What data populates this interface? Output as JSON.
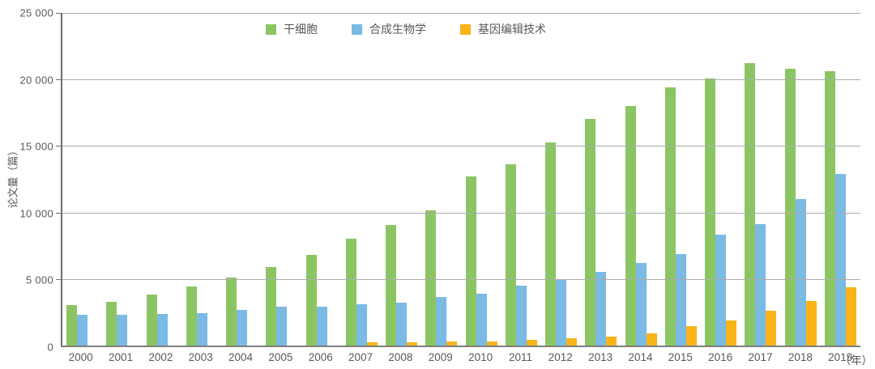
{
  "chart_data": {
    "type": "bar",
    "title": "",
    "ylabel": "论文量（篇）",
    "x_axis_unit": "（年）",
    "ylim": [
      0,
      25000
    ],
    "yticks": [
      0,
      5000,
      10000,
      15000,
      20000,
      25000
    ],
    "ytick_labels": [
      "0",
      "5 000",
      "10 000",
      "15 000",
      "20 000",
      "25 000"
    ],
    "grid": true,
    "legend_position": "top-center",
    "categories": [
      "2000",
      "2001",
      "2002",
      "2003",
      "2004",
      "2005",
      "2006",
      "2007",
      "2008",
      "2009",
      "2010",
      "2011",
      "2012",
      "2013",
      "2014",
      "2015",
      "2016",
      "2017",
      "2018",
      "2019"
    ],
    "series": [
      {
        "name": "干细胞",
        "color": "#8bc563",
        "values": [
          3050,
          3300,
          3850,
          4450,
          5100,
          5900,
          6800,
          8000,
          9050,
          10150,
          12700,
          13650,
          15250,
          17050,
          18000,
          19400,
          20100,
          21200,
          20800,
          20650
        ]
      },
      {
        "name": "合成生物学",
        "color": "#7abae3",
        "values": [
          2300,
          2300,
          2350,
          2450,
          2700,
          2950,
          2950,
          3100,
          3250,
          3650,
          3900,
          4500,
          4900,
          5550,
          6200,
          6900,
          8350,
          9150,
          11000,
          12900
        ]
      },
      {
        "name": "基因编辑技术",
        "color": "#fbb317",
        "values": [
          0,
          0,
          0,
          0,
          0,
          0,
          0,
          250,
          250,
          300,
          300,
          450,
          550,
          700,
          900,
          1450,
          1900,
          2600,
          3350,
          4400
        ]
      }
    ]
  }
}
